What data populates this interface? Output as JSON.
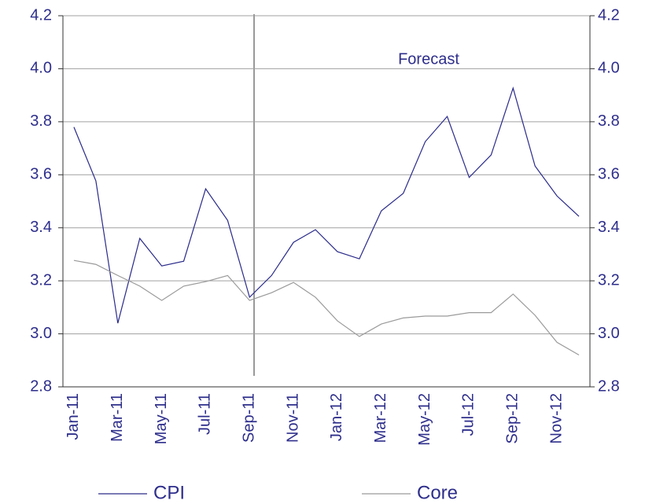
{
  "chart_data": {
    "type": "line",
    "annotation": "Forecast",
    "categories": [
      "Jan-11",
      null,
      "Mar-11",
      null,
      "May-11",
      null,
      "Jul-11",
      null,
      "Sep-11",
      null,
      "Nov-11",
      null,
      "Jan-12",
      null,
      "Mar-12",
      null,
      "May-12",
      null,
      "Jul-12",
      null,
      "Sep-12",
      null,
      "Nov-12",
      null
    ],
    "series": [
      {
        "name": "CPI",
        "color": "#2a2a8a",
        "values": [
          3.78,
          3.577,
          3.04,
          3.36,
          3.256,
          3.274,
          3.547,
          3.428,
          3.138,
          3.22,
          3.345,
          3.393,
          3.31,
          3.283,
          3.464,
          3.53,
          3.725,
          3.82,
          3.59,
          3.675,
          3.927,
          3.633,
          3.52,
          3.443
        ]
      },
      {
        "name": "Core",
        "color": "#9a9a9a",
        "values": [
          3.277,
          3.262,
          3.22,
          3.18,
          3.126,
          3.18,
          3.197,
          3.22,
          3.126,
          3.155,
          3.194,
          3.138,
          3.049,
          2.99,
          3.037,
          3.06,
          3.067,
          3.067,
          3.08,
          3.08,
          3.15,
          3.07,
          2.968,
          2.92
        ]
      }
    ],
    "ylim": [
      2.8,
      4.2
    ],
    "yticks": [
      2.8,
      {
        "value": 3,
        "label": "3.0"
      },
      3.2,
      3.4,
      3.6,
      3.8,
      {
        "value": 4,
        "label": "4.0"
      },
      4.2
    ],
    "y2lim": [
      2.8,
      4.2
    ],
    "y2ticks": [
      2.8,
      {
        "value": 3,
        "label": "3.0"
      },
      3.2,
      3.4,
      3.6,
      3.8,
      {
        "value": 4,
        "label": "4.0"
      },
      4.2
    ],
    "grid": true
  }
}
